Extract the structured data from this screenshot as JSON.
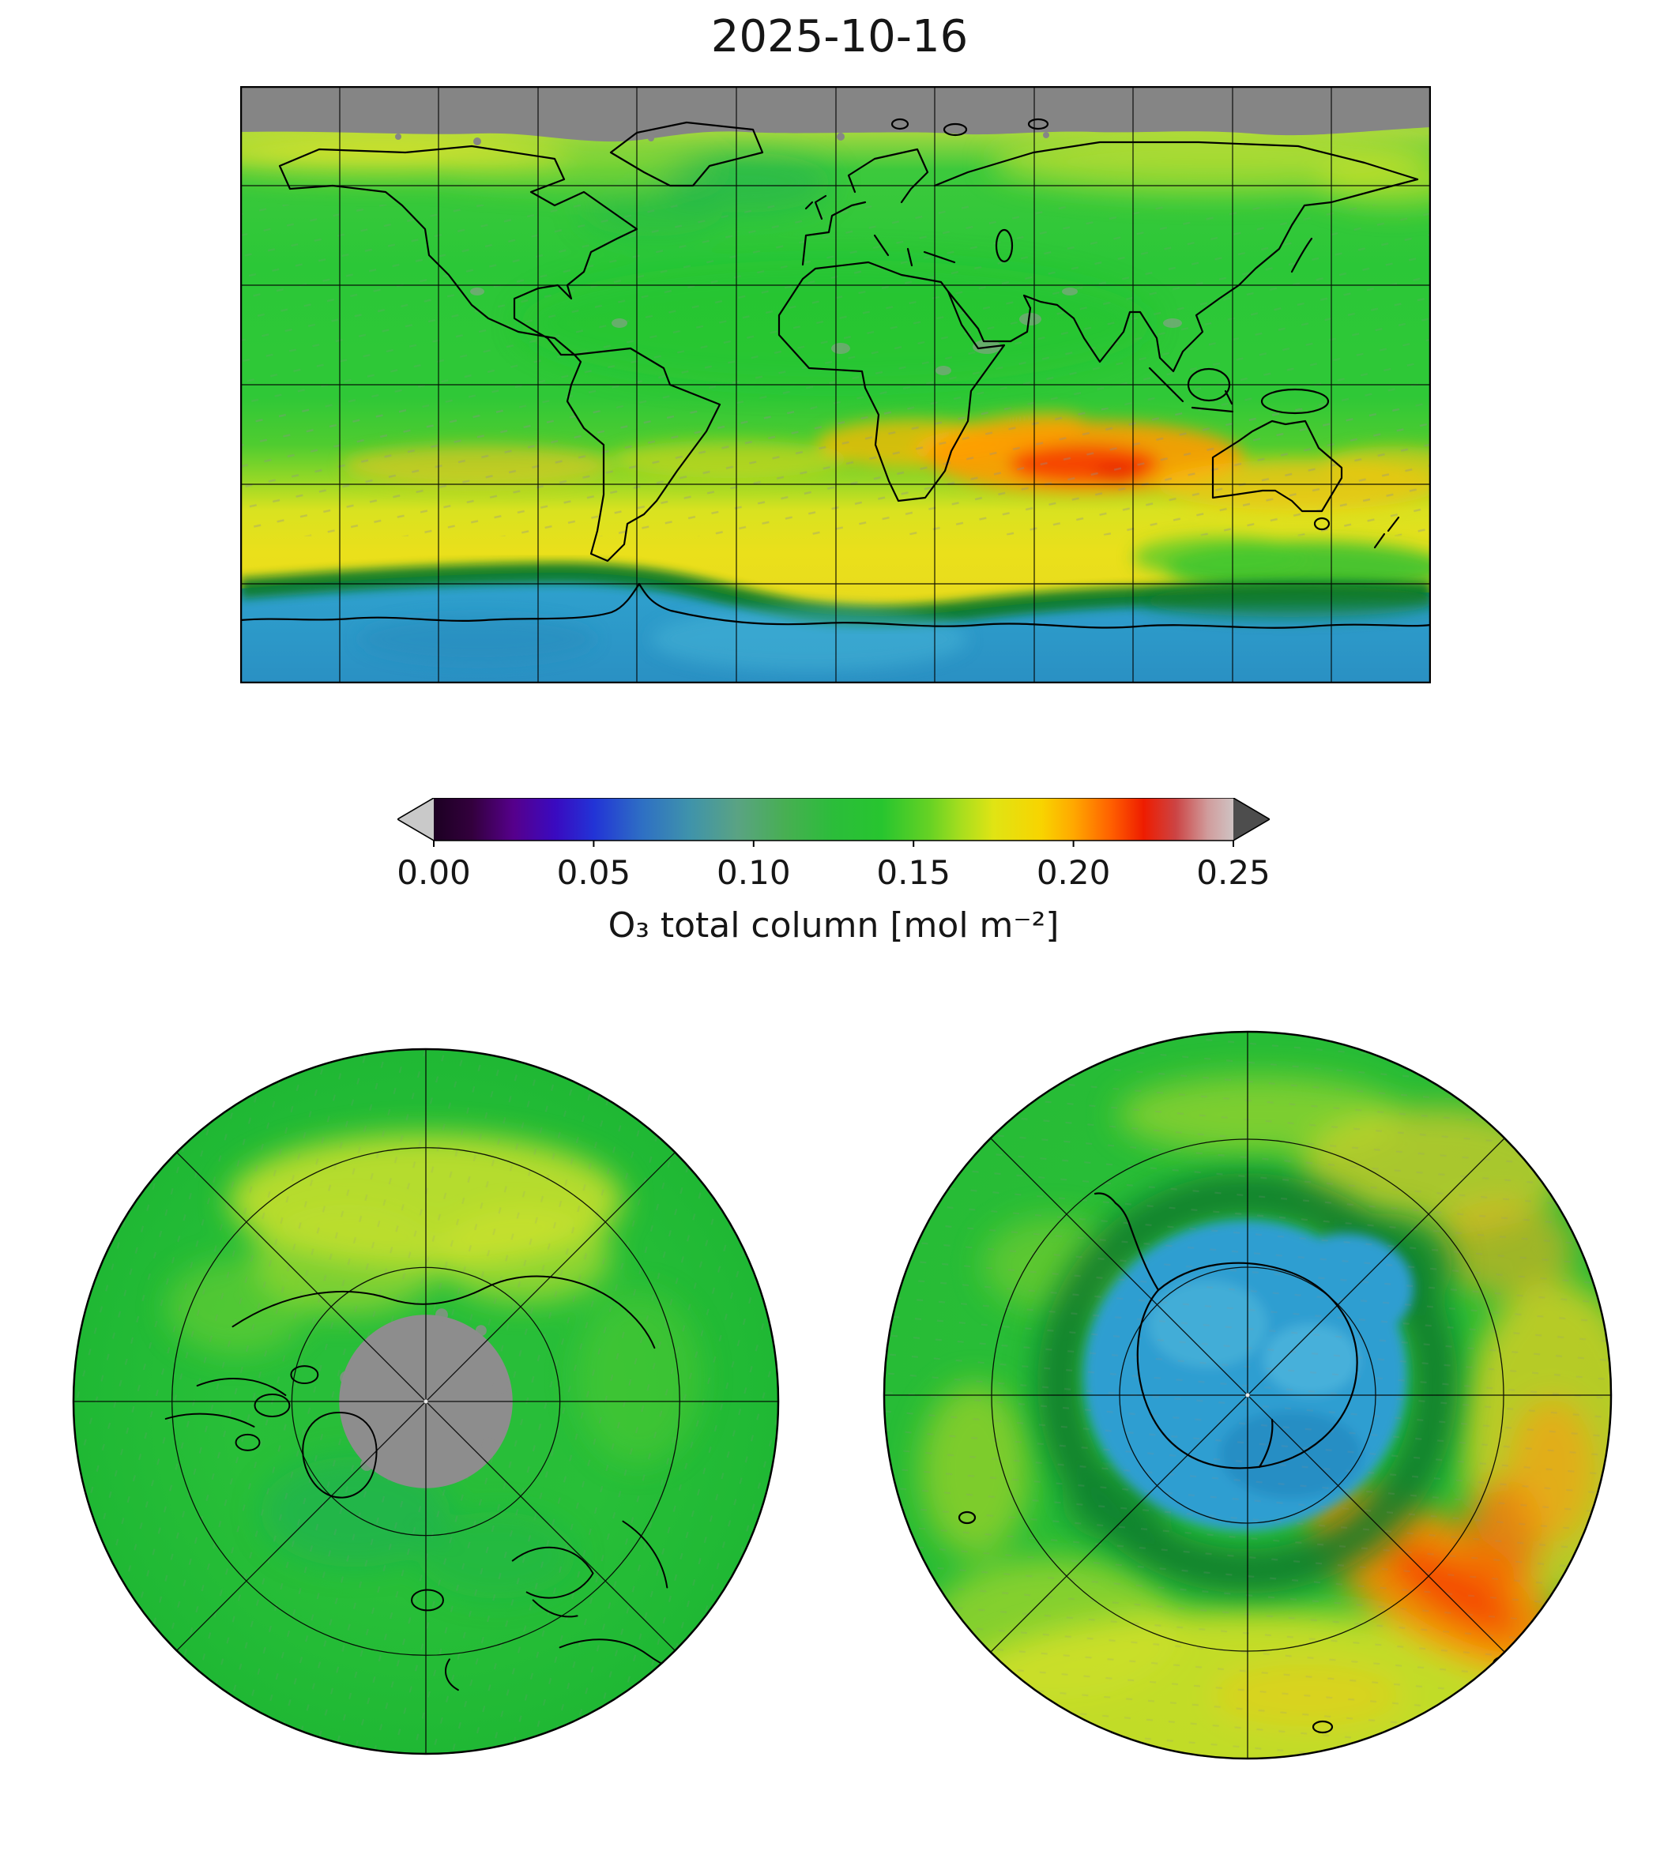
{
  "title": "2025-10-16",
  "colorbar": {
    "label": "O₃ total column [mol m⁻²]",
    "tick_labels": [
      "0.00",
      "0.05",
      "0.10",
      "0.15",
      "0.20",
      "0.25"
    ],
    "min": 0.0,
    "max": 0.25,
    "under_color": "#c9c9c9",
    "over_color": "#4d4d4d",
    "stops": [
      {
        "v": 0.0,
        "c": "#1c0022"
      },
      {
        "v": 0.012,
        "c": "#33003d"
      },
      {
        "v": 0.025,
        "c": "#56008c"
      },
      {
        "v": 0.038,
        "c": "#3a0ac0"
      },
      {
        "v": 0.05,
        "c": "#2233d6"
      },
      {
        "v": 0.065,
        "c": "#2e6fc4"
      },
      {
        "v": 0.08,
        "c": "#3f93ab"
      },
      {
        "v": 0.095,
        "c": "#5aa383"
      },
      {
        "v": 0.11,
        "c": "#47af52"
      },
      {
        "v": 0.125,
        "c": "#2bbd3a"
      },
      {
        "v": 0.14,
        "c": "#27c52f"
      },
      {
        "v": 0.155,
        "c": "#66d224"
      },
      {
        "v": 0.165,
        "c": "#a8de1e"
      },
      {
        "v": 0.175,
        "c": "#e0e414"
      },
      {
        "v": 0.19,
        "c": "#f8d400"
      },
      {
        "v": 0.2,
        "c": "#ffa800"
      },
      {
        "v": 0.212,
        "c": "#ff5e00"
      },
      {
        "v": 0.222,
        "c": "#ee1c00"
      },
      {
        "v": 0.232,
        "c": "#cc4444"
      },
      {
        "v": 0.242,
        "c": "#d09c9c"
      },
      {
        "v": 0.25,
        "c": "#cfc3c3"
      }
    ]
  },
  "chart_data": {
    "type": "heatmap",
    "title": "2025-10-16",
    "variable": "O₃ total column",
    "units": "mol m⁻²",
    "value_range": [
      0.0,
      0.25
    ],
    "colorbar_ticks": [
      0.0,
      0.05,
      0.1,
      0.15,
      0.2,
      0.25
    ],
    "key_colors": {
      "no_data_gray": "#858585",
      "green_background": "#2bc737",
      "yellow_band": "#e9e01b",
      "orange_red_maximum": "#f63c00",
      "ozone_hole_blue": "#2f9ed1",
      "hole_rim_dark_green": "#0b7b2b"
    },
    "panels": [
      {
        "name": "global",
        "projection": "equirectangular",
        "lon_range": [
          -180,
          180
        ],
        "lat_range": [
          -90,
          90
        ],
        "grid_spacing_deg": 30,
        "features": [
          {
            "region": "Arctic cap north of ~72°N",
            "value_mol_m2": null,
            "appearance": "gray (no data, polar night)"
          },
          {
            "region": "NH high-mid latitudes 50–70°N",
            "value_mol_m2": 0.16,
            "appearance": "yellow-green band"
          },
          {
            "region": "tropics and NH mid-latitudes",
            "value_mol_m2": 0.13,
            "appearance": "green"
          },
          {
            "region": "SH mid-latitudes 35–55°S",
            "value_mol_m2": 0.18,
            "appearance": "yellow band"
          },
          {
            "region": "~55–60°S south of Australia / SW Pacific",
            "value_mol_m2": 0.22,
            "appearance": "orange-red maximum"
          },
          {
            "region": "ozone-hole boundary ~58–63°S",
            "value_mol_m2": 0.12,
            "appearance": "dark green rim"
          },
          {
            "region": "Antarctica south of ~63°S",
            "value_mol_m2": 0.08,
            "appearance": "blue (ozone hole)"
          }
        ]
      },
      {
        "name": "north_polar",
        "projection": "north polar stereographic",
        "features": [
          {
            "region": "pole cap",
            "value_mol_m2": null,
            "appearance": "gray (no data)"
          },
          {
            "region": "most of Arctic",
            "value_mol_m2": 0.14,
            "appearance": "green"
          },
          {
            "region": "sector toward panel top",
            "value_mol_m2": 0.17,
            "appearance": "yellow patch"
          }
        ]
      },
      {
        "name": "south_polar",
        "projection": "south polar stereographic",
        "features": [
          {
            "region": "over Antarctica",
            "value_mol_m2": 0.08,
            "appearance": "blue ozone hole"
          },
          {
            "region": "hole rim",
            "value_mol_m2": 0.12,
            "appearance": "dark green ring"
          },
          {
            "region": "mid-latitude collar",
            "value_mol_m2": 0.17,
            "appearance": "yellow"
          },
          {
            "region": "lower-right sector",
            "value_mol_m2": 0.21,
            "appearance": "orange-red arc"
          }
        ]
      }
    ]
  }
}
